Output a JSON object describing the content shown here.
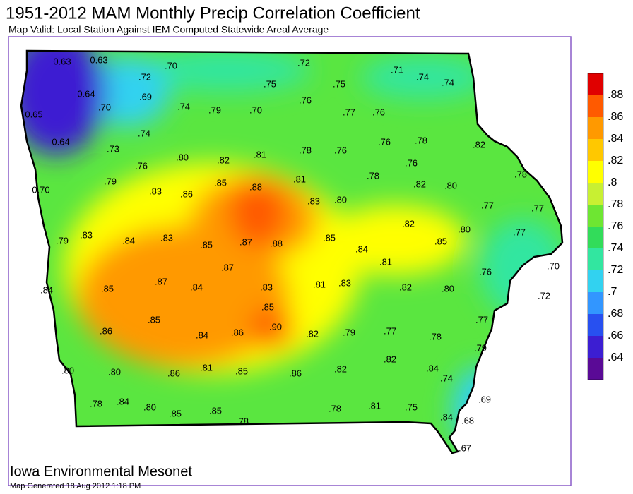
{
  "header": {
    "title": "1951-2012 MAM Monthly Precip Correlation Coefficient",
    "subtitle": "Map Valid: Local Station Against IEM Computed Statewide Areal Average"
  },
  "stations": [
    "0.63",
    "0.63",
    ".70",
    ".72",
    ".71",
    ".74",
    ".74",
    ".72",
    ".75",
    ".75",
    "0.64",
    ".69",
    ".70",
    ".74",
    ".79",
    ".70",
    ".76",
    ".77",
    ".76",
    "0.65",
    ".74",
    "0.64",
    ".73",
    ".76",
    ".80",
    ".82",
    ".81",
    ".78",
    ".76",
    ".76",
    ".78",
    ".82",
    ".76",
    "0.70",
    ".79",
    ".83",
    ".86",
    ".85",
    ".88",
    ".81",
    ".78",
    ".82",
    ".80",
    ".78",
    ".83",
    ".80",
    ".77",
    ".77",
    ".79",
    ".83",
    ".84",
    ".83",
    ".85",
    ".87",
    ".88",
    ".85",
    ".84",
    ".82",
    ".80",
    ".85",
    ".77",
    ".87",
    ".81",
    ".70",
    ".76",
    ".84",
    ".85",
    ".87",
    ".84",
    ".83",
    ".81",
    ".83",
    ".82",
    ".80",
    ".72",
    ".85",
    ".90",
    ".85",
    ".86",
    ".84",
    ".86",
    ".82",
    ".79",
    ".77",
    ".78",
    ".77",
    ".79",
    ".82",
    ".84",
    ".80",
    ".80",
    ".86",
    ".81",
    ".85",
    ".86",
    ".82",
    ".74",
    ".78",
    ".84",
    ".80",
    ".85",
    ".85",
    ".78",
    ".78",
    ".81",
    ".75",
    ".69",
    ".84",
    ".68",
    ".67"
  ],
  "legend": {
    "labels": [
      ".88",
      ".86",
      ".84",
      ".82",
      ".8",
      ".78",
      ".76",
      ".74",
      ".72",
      ".7",
      ".68",
      ".66",
      ".64"
    ],
    "colors": [
      "#e00000",
      "#ff5a00",
      "#ff9900",
      "#ffc800",
      "#ffff00",
      "#c8f032",
      "#6ee632",
      "#32dc5a",
      "#32e6a0",
      "#32d2f0",
      "#3296ff",
      "#2850f0",
      "#3c1ed2",
      "#5a0a96"
    ]
  },
  "footer": {
    "org": "Iowa Environmental Mesonet",
    "generated": "Map Generated 18 Aug 2012 1:18 PM"
  }
}
